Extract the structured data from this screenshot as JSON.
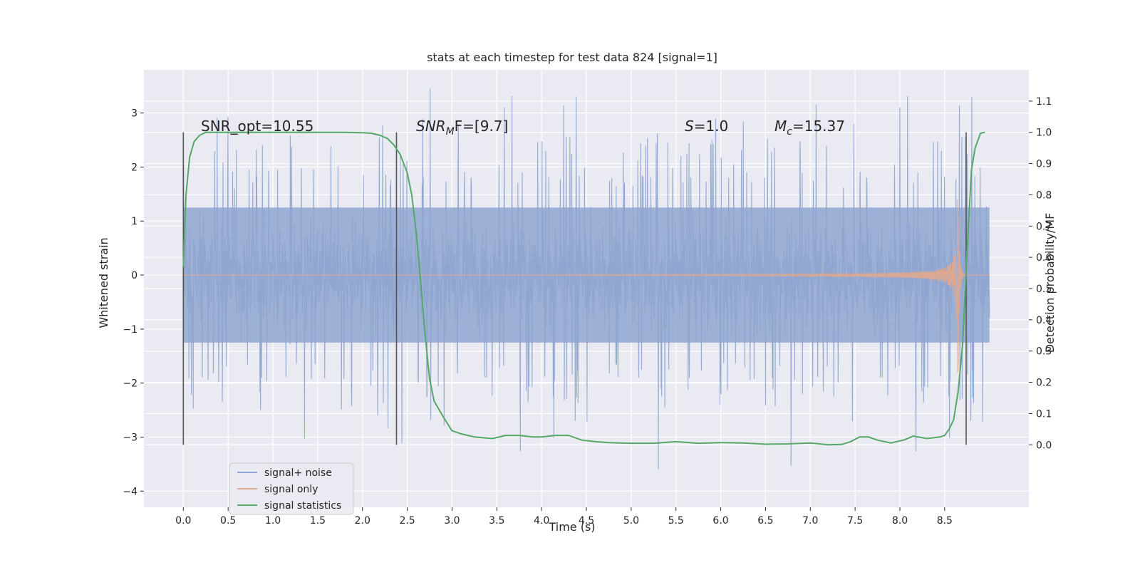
{
  "chart_data": {
    "type": "line",
    "title": "stats at each timestep for test data 824 [signal=1]",
    "xlabel": "Time (s)",
    "ylabel": "Whitened strain",
    "y2label": "Detection probability/MF",
    "xlim": [
      -0.44,
      9.44
    ],
    "ylim": [
      -4.3,
      3.8
    ],
    "y2lim": [
      -0.2,
      1.2
    ],
    "xticks": [
      0.0,
      0.5,
      1.0,
      1.5,
      2.0,
      2.5,
      3.0,
      3.5,
      4.0,
      4.5,
      5.0,
      5.5,
      6.0,
      6.5,
      7.0,
      7.5,
      8.0,
      8.5
    ],
    "xtick_labels": [
      "0.0",
      "0.5",
      "1.0",
      "1.5",
      "2.0",
      "2.5",
      "3.0",
      "3.5",
      "4.0",
      "4.5",
      "5.0",
      "5.5",
      "6.0",
      "6.5",
      "7.0",
      "7.5",
      "8.0",
      "8.5"
    ],
    "yticks": [
      -4,
      -3,
      -2,
      -1,
      0,
      1,
      2,
      3
    ],
    "ytick_labels": [
      "−4",
      "−3",
      "−2",
      "−1",
      "0",
      "1",
      "2",
      "3"
    ],
    "y2ticks": [
      0.0,
      0.1,
      0.2,
      0.3,
      0.4,
      0.5,
      0.6,
      0.7,
      0.8,
      0.9,
      1.0,
      1.1
    ],
    "y2tick_labels": [
      "0.0",
      "0.1",
      "0.2",
      "0.3",
      "0.4",
      "0.5",
      "0.6",
      "0.7",
      "0.8",
      "0.9",
      "1.0",
      "1.1"
    ],
    "grid": true,
    "legend_position": "lower-left",
    "series": [
      {
        "name": "signal+ noise",
        "color": "#8fa6d0",
        "axis": "left",
        "style": "dense noisy strain, time 0.0 to 9.0 s, core band about ±1.5, spikes up to about 3.5 and down to about −4.0"
      },
      {
        "name": "signal only",
        "color": "#e1a88e",
        "axis": "left",
        "style": "chirp starting near 4.0 s, amplitude growing to about ±1.9 at merger near 8.65 s, then ringdown to 0"
      },
      {
        "name": "signal statistics",
        "color": "#55a868",
        "axis": "right",
        "x": [
          0.0,
          0.03,
          0.07,
          0.12,
          0.18,
          0.25,
          0.4,
          1.0,
          1.5,
          1.8,
          2.0,
          2.1,
          2.2,
          2.28,
          2.35,
          2.42,
          2.5,
          2.55,
          2.6,
          2.65,
          2.7,
          2.75,
          2.8,
          2.9,
          3.0,
          3.1,
          3.25,
          3.45,
          3.6,
          3.75,
          3.9,
          4.0,
          4.15,
          4.3,
          4.45,
          4.6,
          4.75,
          5.0,
          5.25,
          5.5,
          5.75,
          6.0,
          6.25,
          6.5,
          6.75,
          7.0,
          7.2,
          7.35,
          7.45,
          7.55,
          7.65,
          7.75,
          7.9,
          8.05,
          8.15,
          8.3,
          8.45,
          8.5,
          8.55,
          8.6,
          8.65,
          8.7,
          8.75,
          8.8,
          8.84,
          8.9,
          8.95
        ],
        "values": [
          0.57,
          0.8,
          0.92,
          0.97,
          0.99,
          1.0,
          1.0,
          1.0,
          1.0,
          1.0,
          0.999,
          0.997,
          0.99,
          0.98,
          0.96,
          0.93,
          0.87,
          0.8,
          0.68,
          0.52,
          0.35,
          0.21,
          0.14,
          0.09,
          0.045,
          0.035,
          0.025,
          0.02,
          0.03,
          0.03,
          0.025,
          0.025,
          0.03,
          0.03,
          0.015,
          0.01,
          0.007,
          0.005,
          0.005,
          0.01,
          0.005,
          0.007,
          0.006,
          0.002,
          0.003,
          0.006,
          0.0,
          0.001,
          0.01,
          0.025,
          0.025,
          0.015,
          0.006,
          0.016,
          0.028,
          0.02,
          0.025,
          0.03,
          0.05,
          0.08,
          0.17,
          0.32,
          0.62,
          0.88,
          0.95,
          0.997,
          1.0
        ]
      }
    ],
    "vlines": [
      0.0,
      2.38,
      8.74
    ],
    "annotations": [
      {
        "text": "SNR_opt=10.55",
        "x": 0.2,
        "y": 2.6
      },
      {
        "main": "SNR",
        "sub": "M",
        "rest": "F=[9.7]",
        "x": 2.6,
        "y": 2.6
      },
      {
        "main": "S",
        "rest": "=1.0",
        "x": 5.6,
        "y": 2.6
      },
      {
        "main": "M",
        "sub": "c",
        "rest": "=15.37",
        "x": 6.6,
        "y": 2.6
      }
    ]
  }
}
